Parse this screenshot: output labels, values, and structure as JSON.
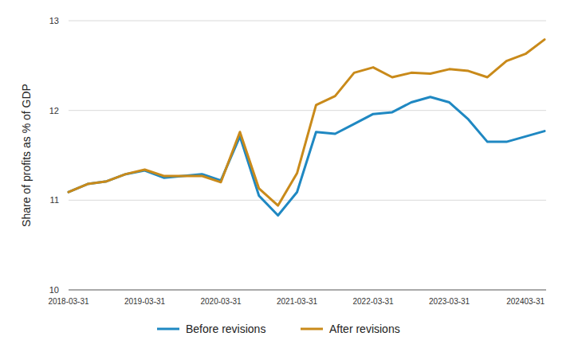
{
  "chart_data": {
    "type": "line",
    "y_label": "Share of profits as % of GDP",
    "categories": [
      "2018-03-31",
      null,
      null,
      null,
      "2019-03-31",
      null,
      null,
      null,
      "2020-03-31",
      null,
      null,
      null,
      "2021-03-31",
      null,
      null,
      null,
      "2022-03-31",
      null,
      null,
      null,
      "2023-03-31",
      null,
      null,
      null,
      "202403-31",
      null
    ],
    "series": [
      {
        "name": "Before revisions",
        "color": "#1f88c2",
        "values": [
          11.09,
          11.18,
          11.21,
          11.29,
          11.33,
          11.25,
          11.27,
          11.29,
          11.22,
          11.71,
          11.05,
          10.83,
          11.09,
          11.76,
          11.74,
          11.85,
          11.96,
          11.98,
          12.09,
          12.15,
          12.09,
          11.9,
          11.65,
          11.65,
          11.71,
          11.77
        ]
      },
      {
        "name": "After revisions",
        "color": "#c98a1a",
        "values": [
          11.09,
          11.18,
          11.21,
          11.29,
          11.34,
          11.27,
          11.27,
          11.27,
          11.2,
          11.76,
          11.13,
          10.94,
          11.3,
          12.06,
          12.16,
          12.42,
          12.48,
          12.37,
          12.42,
          12.41,
          12.46,
          12.44,
          12.37,
          12.55,
          12.63,
          12.79
        ]
      }
    ],
    "ylim": [
      10,
      13
    ],
    "yticks": [
      10,
      11,
      12,
      13
    ],
    "grid": true,
    "legend": "bottom"
  }
}
